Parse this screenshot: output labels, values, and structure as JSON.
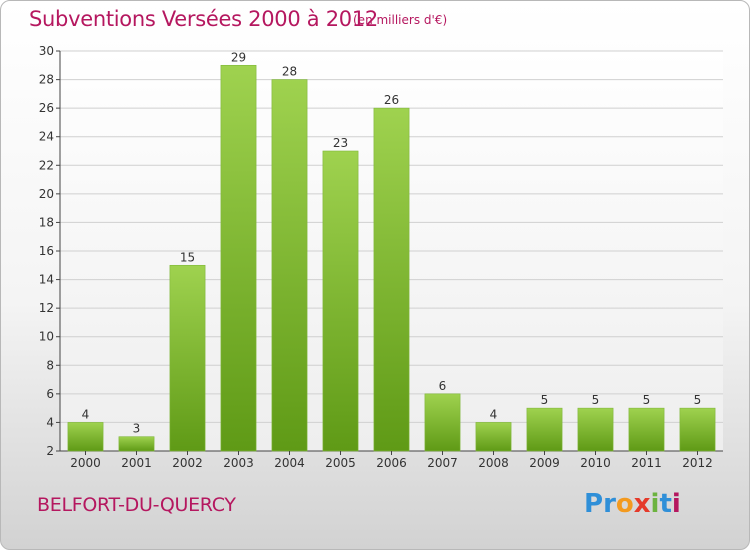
{
  "title": "Subventions Versées 2000 à 2012",
  "subtitle": "(en milliers d'€)",
  "commune": "BELFORT-DU-QUERCY",
  "logo": {
    "text": [
      "P",
      "r",
      "o",
      "x",
      "i",
      "t",
      "i"
    ]
  },
  "colors": {
    "title": "#b5175f",
    "bar_light": "#9fd24f",
    "bar_dark": "#5f9a16"
  },
  "chart_data": {
    "type": "bar",
    "categories": [
      "2000",
      "2001",
      "2002",
      "2003",
      "2004",
      "2005",
      "2006",
      "2007",
      "2008",
      "2009",
      "2010",
      "2011",
      "2012"
    ],
    "values": [
      4,
      3,
      15,
      29,
      28,
      23,
      26,
      6,
      4,
      5,
      5,
      5,
      5
    ],
    "ylim": [
      2,
      30
    ],
    "yticks": [
      2,
      4,
      6,
      8,
      10,
      12,
      14,
      16,
      18,
      20,
      22,
      24,
      26,
      28,
      30
    ],
    "grid": true
  }
}
